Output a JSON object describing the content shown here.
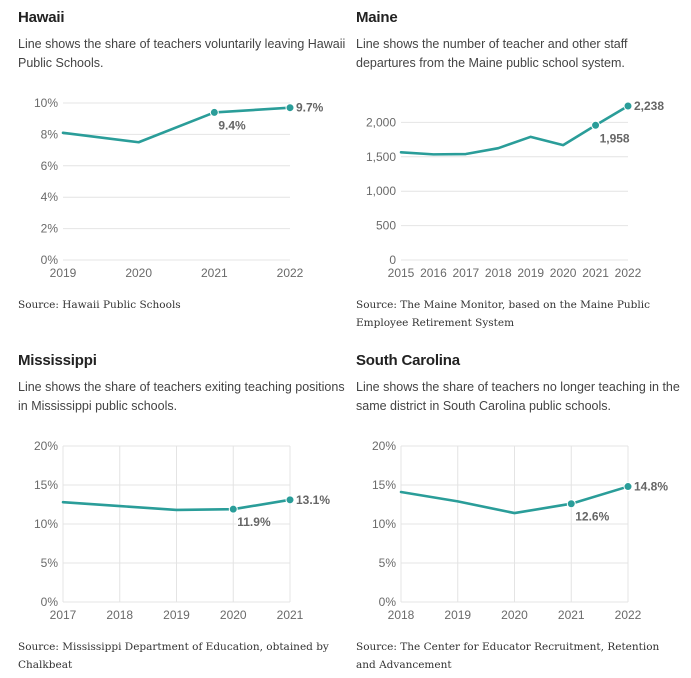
{
  "panels": [
    {
      "id": "hawaii",
      "title": "Hawaii",
      "subtitle": "Line shows the share of teachers voluntarily leaving Hawaii Public Schools.",
      "source": "Source: Hawaii Public Schools"
    },
    {
      "id": "maine",
      "title": "Maine",
      "subtitle": "Line shows the number of teacher and other staff departures from the Maine public school system.",
      "source": "Source: The Maine Monitor, based on the Maine Public Employee Retirement System"
    },
    {
      "id": "mississippi",
      "title": "Mississippi",
      "subtitle": "Line shows the share of teachers exiting teaching positions in Mississippi public schools.",
      "source": "Source: Mississippi Department of Education, obtained by Chalkbeat"
    },
    {
      "id": "south-carolina",
      "title": "South Carolina",
      "subtitle": "Line shows the share of teachers no longer teaching in the same district in South Carolina public schools.",
      "source": "Source: The Center for Educator Recruitment, Retention and Advancement"
    }
  ],
  "colors": {
    "series": "#2a9d99",
    "grid": "#e4e4e4",
    "tick": "#6a6a6a",
    "label": "#666666"
  },
  "chart_data": [
    {
      "type": "line",
      "title": "Hawaii",
      "x": [
        2019,
        2020,
        2021,
        2022
      ],
      "values": [
        8.1,
        7.5,
        9.4,
        9.7
      ],
      "unit": "%",
      "ylim": [
        0,
        10
      ],
      "yticks": [
        0,
        2,
        4,
        6,
        8,
        10
      ],
      "ytick_labels": [
        "0%",
        "2%",
        "4%",
        "6%",
        "8%",
        "10%"
      ],
      "xtick_labels": [
        "2019",
        "2020",
        "2021",
        "2022"
      ],
      "vertical_grid": false,
      "markers": [
        {
          "x": 2021,
          "value": 9.4,
          "label": "9.4%",
          "label_position": "below"
        },
        {
          "x": 2022,
          "value": 9.7,
          "label": "9.7%",
          "label_position": "right"
        }
      ]
    },
    {
      "type": "line",
      "title": "Maine",
      "x": [
        2015,
        2016,
        2017,
        2018,
        2019,
        2020,
        2021,
        2022
      ],
      "values": [
        1565,
        1535,
        1540,
        1625,
        1790,
        1670,
        1958,
        2238
      ],
      "ylim": [
        0,
        2238
      ],
      "yticks": [
        0,
        500,
        1000,
        1500,
        2000
      ],
      "ytick_labels": [
        "0",
        "500",
        "1,000",
        "1,500",
        "2,000"
      ],
      "xtick_labels": [
        "2015",
        "2016",
        "2017",
        "2018",
        "2019",
        "2020",
        "2021",
        "2022"
      ],
      "vertical_grid": false,
      "markers": [
        {
          "x": 2021,
          "value": 1958,
          "label": "1,958",
          "label_position": "below"
        },
        {
          "x": 2022,
          "value": 2238,
          "label": "2,238",
          "label_position": "right"
        }
      ]
    },
    {
      "type": "line",
      "title": "Mississippi",
      "x": [
        2017,
        2018,
        2019,
        2020,
        2021
      ],
      "values": [
        12.8,
        12.3,
        11.8,
        11.9,
        13.1
      ],
      "unit": "%",
      "ylim": [
        0,
        20
      ],
      "yticks": [
        0,
        5,
        10,
        15,
        20
      ],
      "ytick_labels": [
        "0%",
        "5%",
        "10%",
        "15%",
        "20%"
      ],
      "xtick_labels": [
        "2017",
        "2018",
        "2019",
        "2020",
        "2021"
      ],
      "vertical_grid": true,
      "markers": [
        {
          "x": 2020,
          "value": 11.9,
          "label": "11.9%",
          "label_position": "below"
        },
        {
          "x": 2021,
          "value": 13.1,
          "label": "13.1%",
          "label_position": "right"
        }
      ]
    },
    {
      "type": "line",
      "title": "South Carolina",
      "x": [
        2018,
        2019,
        2020,
        2021,
        2022
      ],
      "values": [
        14.1,
        12.9,
        11.4,
        12.6,
        14.8
      ],
      "unit": "%",
      "ylim": [
        0,
        20
      ],
      "yticks": [
        0,
        5,
        10,
        15,
        20
      ],
      "ytick_labels": [
        "0%",
        "5%",
        "10%",
        "15%",
        "20%"
      ],
      "xtick_labels": [
        "2018",
        "2019",
        "2020",
        "2021",
        "2022"
      ],
      "vertical_grid": true,
      "markers": [
        {
          "x": 2021,
          "value": 12.6,
          "label": "12.6%",
          "label_position": "below"
        },
        {
          "x": 2022,
          "value": 14.8,
          "label": "14.8%",
          "label_position": "right"
        }
      ]
    }
  ]
}
